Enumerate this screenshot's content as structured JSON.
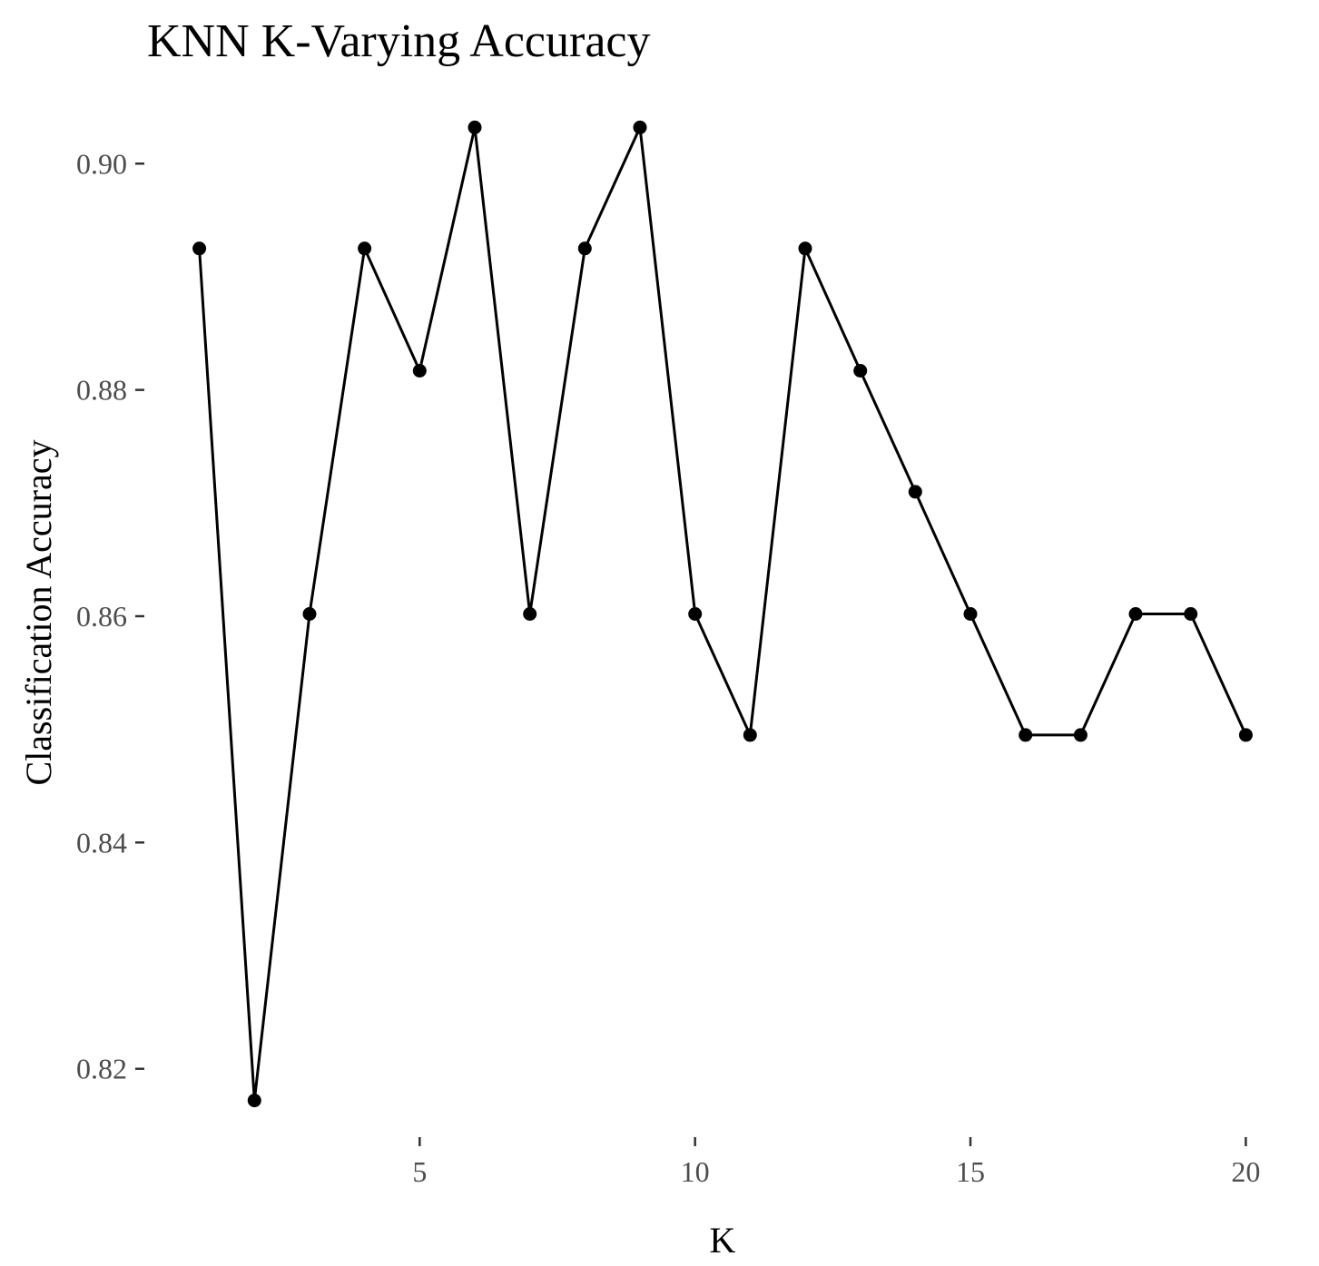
{
  "chart_data": {
    "type": "line",
    "title": "KNN K-Varying Accuracy",
    "xlabel": "K",
    "ylabel": "Classification Accuracy",
    "x": [
      1,
      2,
      3,
      4,
      5,
      6,
      7,
      8,
      9,
      10,
      11,
      12,
      13,
      14,
      15,
      16,
      17,
      18,
      19,
      20
    ],
    "values": [
      0.8925,
      0.8172,
      0.8602,
      0.8925,
      0.8817,
      0.9032,
      0.8602,
      0.8925,
      0.9032,
      0.8602,
      0.8495,
      0.8925,
      0.8817,
      0.871,
      0.8602,
      0.8495,
      0.8495,
      0.8602,
      0.8602,
      0.8495
    ],
    "xlim": [
      0.05,
      20.95
    ],
    "ylim": [
      0.8142,
      0.9062
    ],
    "x_ticks": [
      5,
      10,
      15,
      20
    ],
    "x_tick_labels": [
      "5",
      "10",
      "15",
      "20"
    ],
    "y_ticks": [
      0.82,
      0.84,
      0.86,
      0.88,
      0.9
    ],
    "y_tick_labels": [
      "0.82",
      "0.84",
      "0.86",
      "0.88",
      "0.90"
    ],
    "grid": false,
    "legend": "none",
    "colors": {
      "line": "#000000",
      "points": "#000000",
      "tick_labels": "#4d4d4d",
      "background": "#ffffff"
    }
  }
}
